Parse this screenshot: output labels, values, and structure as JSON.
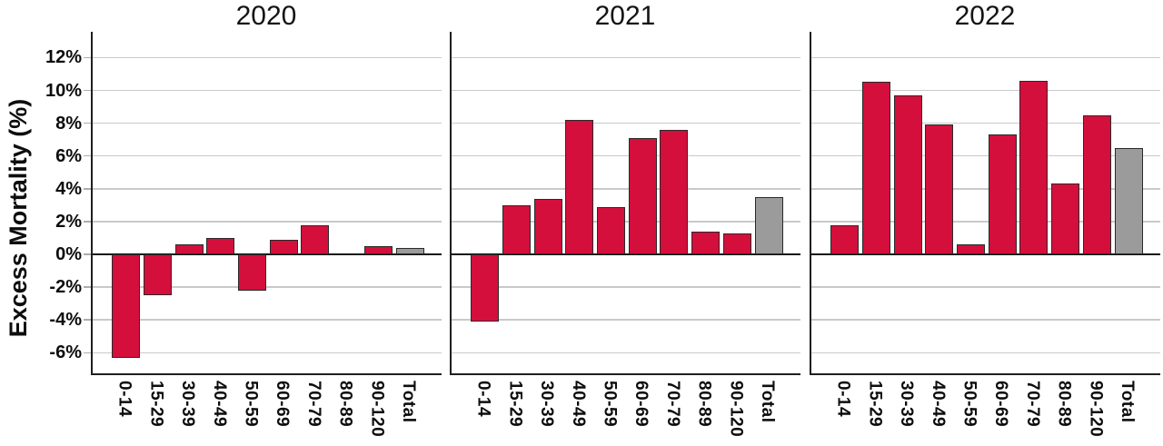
{
  "figure": {
    "kind": "three-panel bar chart",
    "background": "#ffffff"
  },
  "chart_data": {
    "type": "bar",
    "title": "",
    "ylabel": "Excess Mortality (%)",
    "xlabel": "",
    "categories": [
      "0-14",
      "15-29",
      "30-39",
      "40-49",
      "50-59",
      "60-69",
      "70-79",
      "80-89",
      "90-120",
      "Total"
    ],
    "panels": [
      {
        "title": "2020",
        "values": [
          -6.3,
          -2.5,
          0.6,
          1.0,
          -2.2,
          0.9,
          1.8,
          0.0,
          0.5,
          0.4
        ]
      },
      {
        "title": "2021",
        "values": [
          -4.1,
          3.0,
          3.4,
          8.2,
          2.9,
          7.1,
          7.6,
          1.4,
          1.3,
          3.5
        ]
      },
      {
        "title": "2022",
        "values": [
          1.8,
          10.5,
          9.7,
          7.9,
          0.6,
          7.3,
          10.6,
          4.3,
          8.5,
          6.5
        ]
      }
    ],
    "y_tick_labels": [
      "12%",
      "10%",
      "8%",
      "6%",
      "4%",
      "2%",
      "0%",
      "-2%",
      "-4%",
      "-6%"
    ],
    "y_tick_values": [
      12,
      10,
      8,
      6,
      4,
      2,
      0,
      -2,
      -4,
      -6
    ],
    "ylim": [
      -7.3,
      13.6
    ],
    "grid": true,
    "legend": null,
    "unit": "%",
    "bar_color": "#d40f3c",
    "total_bar_color": "#9b9b9b",
    "bar_outline_color": "#2a2a2a",
    "gridline_color": "#c9c9c9",
    "axis_color": "#1f1f1f"
  }
}
